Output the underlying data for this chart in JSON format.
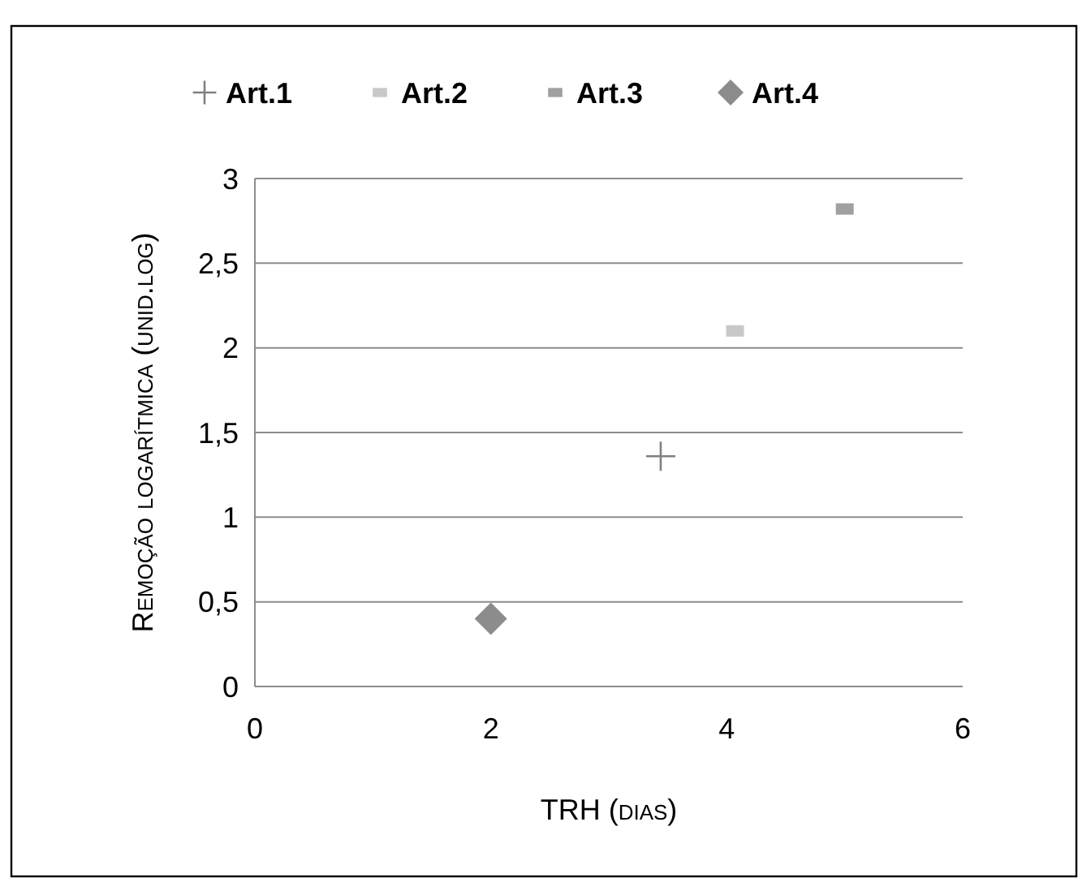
{
  "chart_data": {
    "type": "scatter",
    "xlabel": "TRH (dias)",
    "ylabel": "Remoção logarítmica (unid.log)",
    "xlim": [
      0,
      6
    ],
    "xticks": [
      0,
      2,
      4,
      6
    ],
    "ylim": [
      0,
      3
    ],
    "yticks": [
      0,
      {
        "value": 0.5,
        "label": "0,5"
      },
      1,
      {
        "value": 1.5,
        "label": "1,5"
      },
      2,
      {
        "value": 2.5,
        "label": "2,5"
      },
      3
    ],
    "grid": "y",
    "legend": "top",
    "series": [
      {
        "name": "Art.1",
        "color": "#808080",
        "marker": "cross",
        "x": [
          3.44
        ],
        "values": [
          1.36
        ]
      },
      {
        "name": "Art.2",
        "color": "#c8c8c8",
        "marker": "square",
        "x": [
          4.07
        ],
        "values": [
          2.1
        ]
      },
      {
        "name": "Art.3",
        "color": "#a0a0a0",
        "marker": "square",
        "x": [
          5
        ],
        "values": [
          2.82
        ]
      },
      {
        "name": "Art.4",
        "color": "#8c8c8c",
        "marker": "diamond",
        "x": [
          2
        ],
        "values": [
          0.4
        ]
      }
    ]
  }
}
